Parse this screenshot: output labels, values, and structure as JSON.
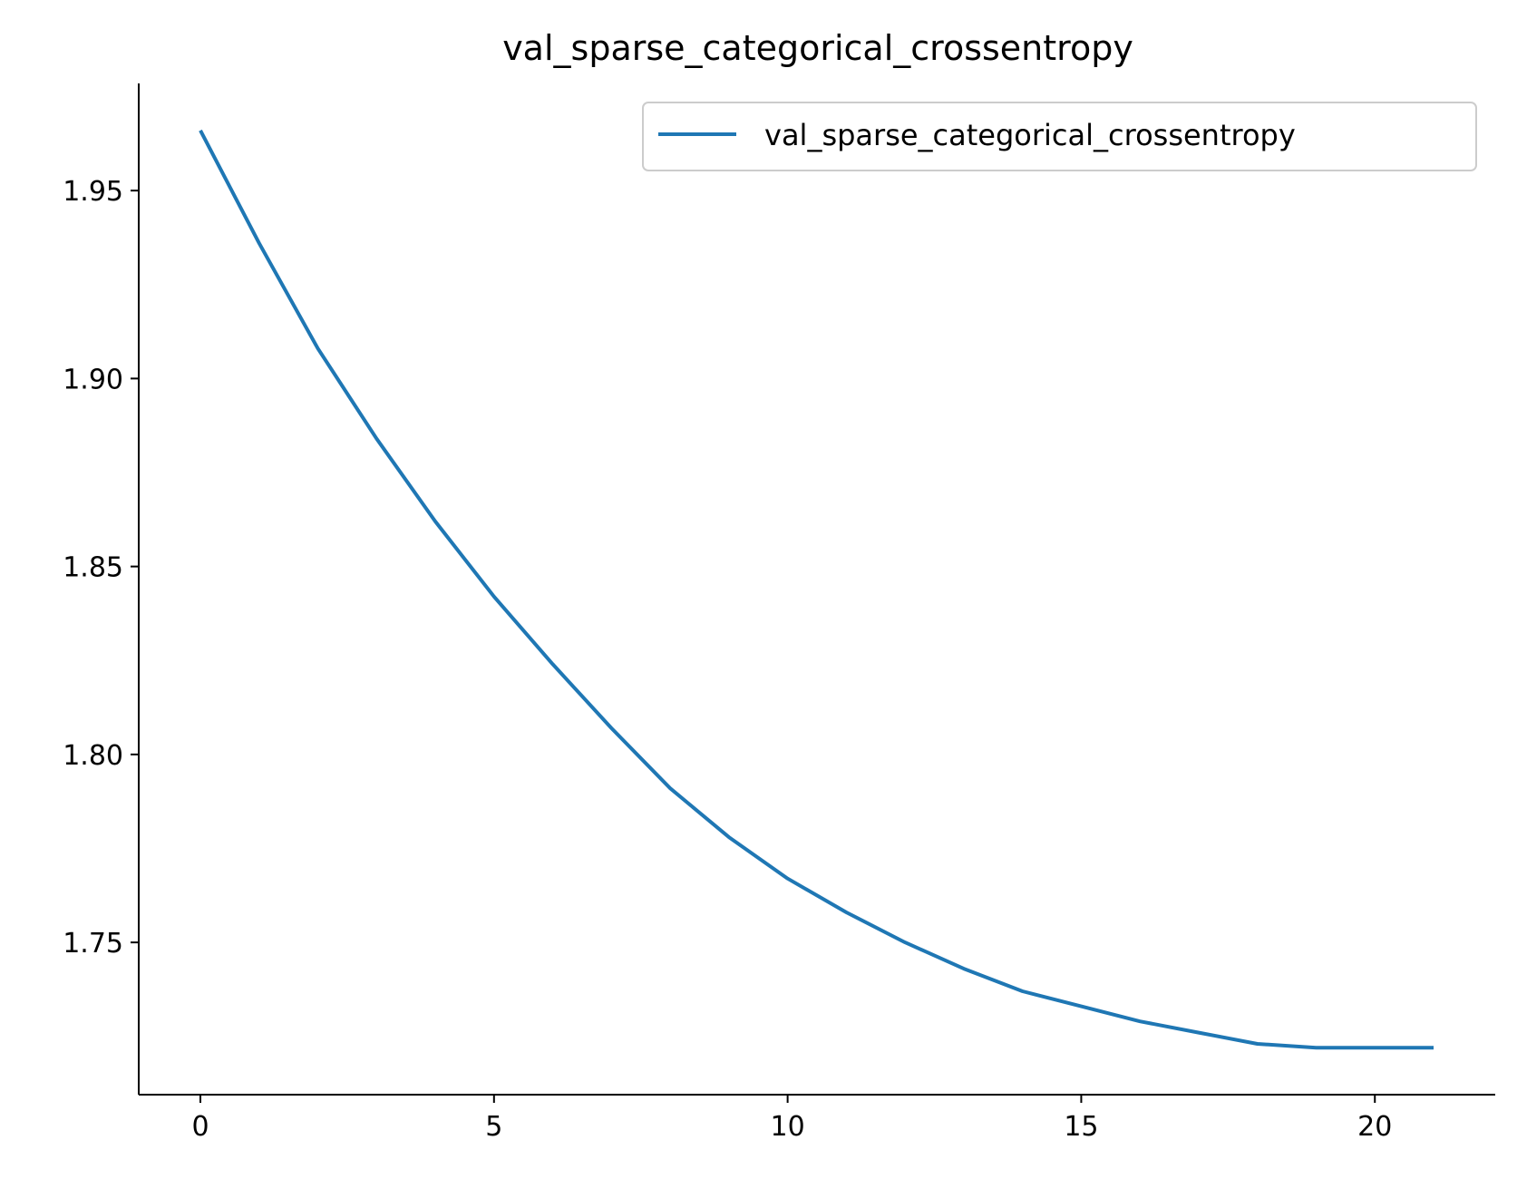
{
  "chart_data": {
    "type": "line",
    "title": "val_sparse_categorical_crossentropy",
    "xlabel": "",
    "ylabel": "",
    "x": [
      0,
      1,
      2,
      3,
      4,
      5,
      6,
      7,
      8,
      9,
      10,
      11,
      12,
      13,
      14,
      15,
      16,
      17,
      18,
      19,
      20,
      21
    ],
    "series": [
      {
        "name": "val_sparse_categorical_crossentropy",
        "color": "#1f77b4",
        "values": [
          1.966,
          1.936,
          1.908,
          1.884,
          1.862,
          1.842,
          1.824,
          1.807,
          1.791,
          1.778,
          1.767,
          1.758,
          1.75,
          1.743,
          1.737,
          1.733,
          1.729,
          1.726,
          1.723,
          1.722,
          1.722,
          1.722
        ]
      }
    ],
    "xlim": [
      -1.05,
      22.05
    ],
    "ylim": [
      1.7095,
      1.9785
    ],
    "xticks": [
      0,
      5,
      10,
      15,
      20
    ],
    "xtick_labels": [
      "0",
      "5",
      "10",
      "15",
      "20"
    ],
    "yticks": [
      1.75,
      1.8,
      1.85,
      1.9,
      1.95
    ],
    "ytick_labels": [
      "1.75",
      "1.80",
      "1.85",
      "1.90",
      "1.95"
    ],
    "grid": false,
    "legend_position": "top-right"
  }
}
